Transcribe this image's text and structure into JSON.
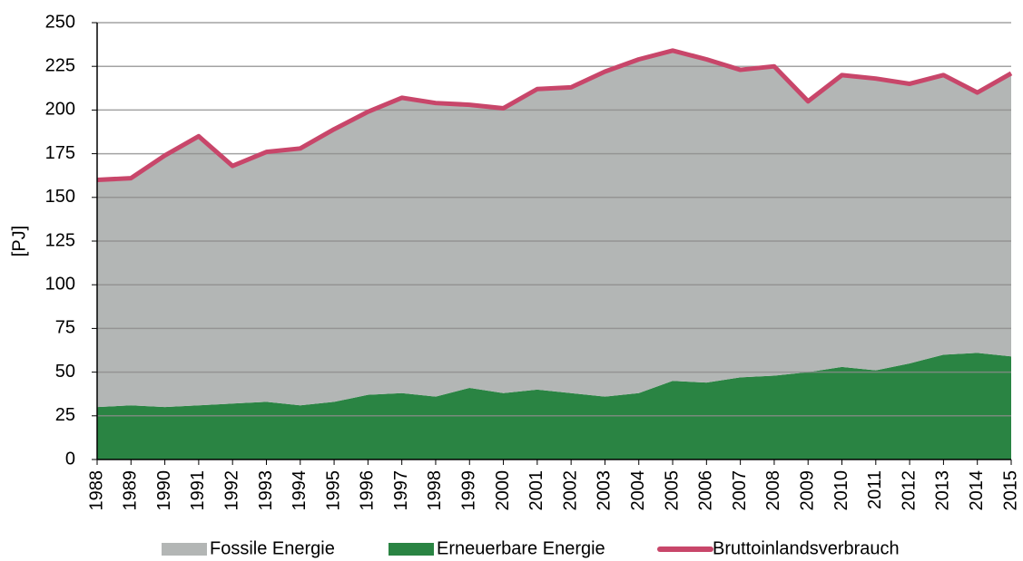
{
  "chart_data": {
    "type": "stacked-area-line",
    "ylabel": "[PJ]",
    "categories": [
      "1988",
      "1989",
      "1990",
      "1991",
      "1992",
      "1993",
      "1994",
      "1995",
      "1996",
      "1997",
      "1998",
      "1999",
      "2000",
      "2001",
      "2002",
      "2003",
      "2004",
      "2005",
      "2006",
      "2007",
      "2008",
      "2009",
      "2010",
      "2011",
      "2012",
      "2013",
      "2014",
      "2015"
    ],
    "series": [
      {
        "name": "Fossile Energie",
        "color": "#b3b6b5",
        "kind": "area",
        "values": [
          130,
          130,
          144,
          154,
          136,
          143,
          147,
          156,
          162,
          169,
          168,
          162,
          163,
          172,
          175,
          186,
          191,
          189,
          185,
          176,
          177,
          155,
          167,
          167,
          160,
          160,
          149,
          162
        ]
      },
      {
        "name": "Erneuerbare Energie",
        "color": "#2a8443",
        "kind": "area",
        "values": [
          30,
          31,
          30,
          31,
          32,
          33,
          31,
          33,
          37,
          38,
          36,
          41,
          38,
          40,
          38,
          36,
          38,
          45,
          44,
          47,
          48,
          50,
          53,
          51,
          55,
          60,
          61,
          59
        ]
      },
      {
        "name": "Bruttoinlandsverbrauch",
        "color": "#c8466a",
        "kind": "line",
        "values": [
          160,
          161,
          174,
          185,
          168,
          176,
          178,
          189,
          199,
          207,
          204,
          203,
          201,
          212,
          213,
          222,
          229,
          234,
          229,
          223,
          225,
          205,
          220,
          218,
          215,
          220,
          210,
          221
        ]
      }
    ],
    "ylim": [
      0,
      250
    ],
    "yticks": [
      0,
      25,
      50,
      75,
      100,
      125,
      150,
      175,
      200,
      225,
      250
    ],
    "grid": true
  }
}
